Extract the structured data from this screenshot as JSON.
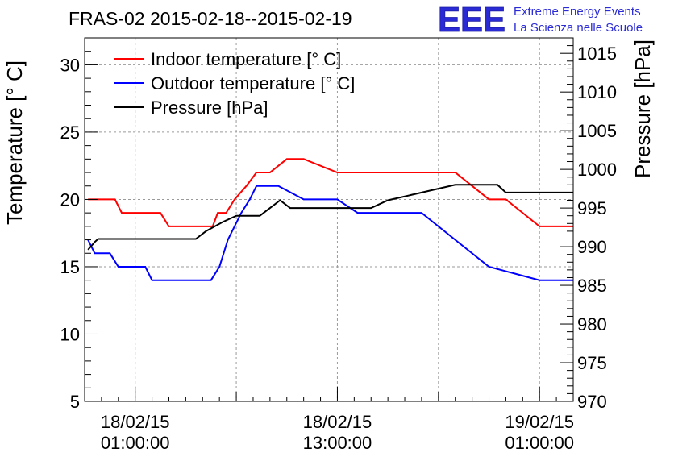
{
  "chart_data": {
    "type": "line",
    "title": "FRAS-02 2015-02-18--2015-02-19",
    "ylabel": "Temperature [° C]",
    "y2label": "Pressure [hPa]",
    "ylim": [
      5,
      32
    ],
    "y2lim": [
      970,
      1017
    ],
    "yticks": [
      5,
      10,
      15,
      20,
      25,
      30
    ],
    "y2ticks": [
      970,
      975,
      980,
      985,
      990,
      995,
      1000,
      1005,
      1010,
      1015
    ],
    "xlim": [
      -3.0,
      26.0
    ],
    "xticks": [
      {
        "x": 0,
        "date": "18/02/15",
        "time": "01:00:00"
      },
      {
        "x": 12,
        "date": "18/02/15",
        "time": "13:00:00"
      },
      {
        "x": 24,
        "date": "19/02/15",
        "time": "01:00:00"
      }
    ],
    "grid": true,
    "legend_position": "top-left",
    "series": [
      {
        "name": "Indoor temperature [° C]",
        "color": "#ff0000",
        "axis": "left",
        "x": [
          -2.8,
          -1.2,
          -0.8,
          1.5,
          2.0,
          4.6,
          4.9,
          5.4,
          5.9,
          6.6,
          7.2,
          8.0,
          9.0,
          10.0,
          12.0,
          15.0,
          19.0,
          20.0,
          21.0,
          22.0,
          23.0,
          24.0,
          26.0
        ],
        "y": [
          20,
          20,
          19,
          19,
          18,
          18,
          19,
          19,
          20,
          21,
          22,
          22,
          23,
          23,
          22,
          22,
          22,
          21,
          20,
          20,
          19,
          18,
          18
        ]
      },
      {
        "name": "Outdoor temperature [° C]",
        "color": "#0000ff",
        "axis": "left",
        "x": [
          -2.8,
          -2.4,
          -1.5,
          -1.0,
          0.6,
          1.0,
          4.5,
          5.0,
          5.5,
          6.3,
          6.8,
          7.2,
          8.5,
          10.0,
          12.0,
          13.2,
          15.0,
          17.0,
          19.0,
          21.0,
          24.0,
          26.0
        ],
        "y": [
          17,
          16,
          16,
          15,
          15,
          14,
          14,
          15,
          17,
          19,
          20,
          21,
          21,
          20,
          20,
          19,
          19,
          19,
          17,
          15,
          14,
          14
        ]
      },
      {
        "name": "Pressure [hPa]",
        "color": "#000000",
        "axis": "right",
        "x": [
          -2.8,
          -2.4,
          -2.2,
          3.6,
          4.2,
          5.2,
          6.0,
          7.4,
          8.0,
          8.6,
          9.2,
          10.0,
          12.0,
          14.0,
          15.0,
          17.0,
          19.0,
          21.5,
          22.0,
          24.0,
          26.0
        ],
        "y": [
          989.6,
          990.6,
          991.0,
          991.0,
          992.0,
          993.2,
          994.0,
          994.0,
          995.0,
          996.0,
          995.0,
          995.0,
          995.0,
          995.0,
          996.0,
          997.0,
          998.0,
          998.0,
          997.0,
          997.0,
          997.0
        ]
      }
    ]
  },
  "logo": {
    "mark": "EEE",
    "line1": "Extreme Energy Events",
    "line2": "La Scienza nelle Scuole",
    "color": "#2b2bd6"
  }
}
